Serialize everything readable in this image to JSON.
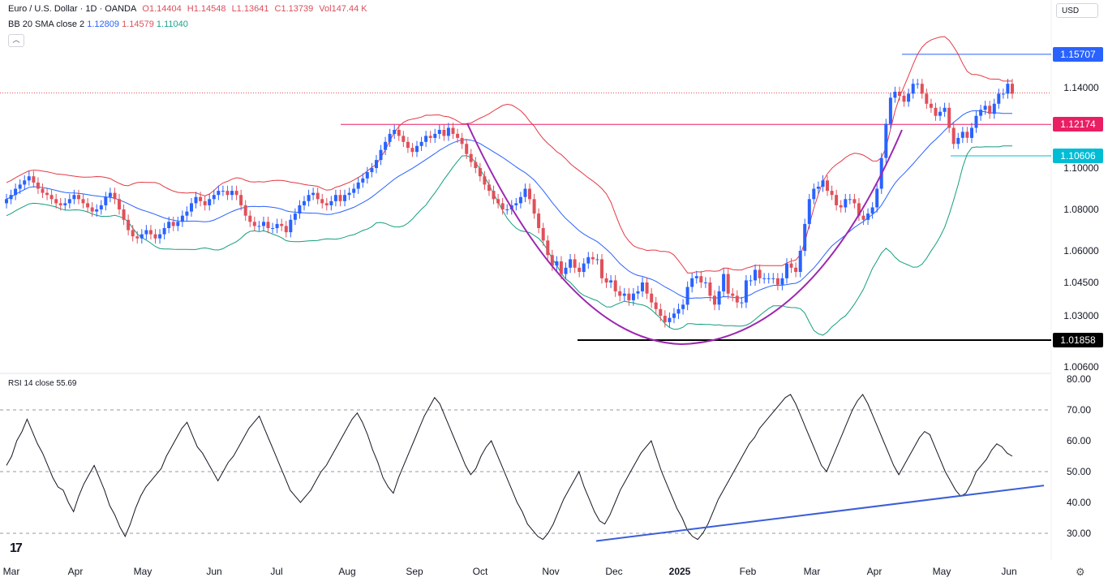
{
  "header": {
    "symbol": "Euro / U.S. Dollar · 1D · OANDA",
    "open": "O1.14404",
    "high": "H1.14548",
    "low": "L1.13641",
    "close": "C1.13739",
    "vol": "Vol147.44 K",
    "indicator": "BB 20 SMA close 2",
    "bb_basis": "1.12809",
    "bb_upper": "1.14579",
    "bb_lower": "1.11040",
    "currency": "USD",
    "collapse_glyph": "︿"
  },
  "rsi_header": "RSI 14 close  55.69",
  "price_labels": {
    "high_line": "1.15707",
    "resistance": "1.12174",
    "support": "1.10606",
    "low_line": "1.01858"
  },
  "logo_text": "17",
  "settings_glyph": "⚙",
  "colors": {
    "up": "#2962ff",
    "down": "#e0505a",
    "bb_upper": "#e53945",
    "bb_basis": "#2962ff",
    "bb_lower": "#149e7d",
    "cup": "#9c27b0",
    "resistance": "#e91e63",
    "support": "#00bcd4",
    "high_line": "#2962ff"
  },
  "chart_data": [
    {
      "type": "candlestick",
      "title": "Euro / U.S. Dollar · 1D · OANDA",
      "y_ticks": [
        "1.14000",
        "1.10000",
        "1.08000",
        "1.06000",
        "1.04500",
        "1.03000",
        "1.00600"
      ],
      "x_ticks": [
        "Mar",
        "Apr",
        "May",
        "Jun",
        "Jul",
        "Aug",
        "Sep",
        "Oct",
        "Nov",
        "Dec",
        "2025",
        "Feb",
        "Mar",
        "Apr",
        "May",
        "Jun"
      ],
      "overlays": [
        "Bollinger Bands (20, 2)"
      ],
      "annotations": [
        {
          "kind": "horizontal",
          "value": 1.15707,
          "label": "1.15707"
        },
        {
          "kind": "horizontal",
          "value": 1.12174,
          "label": "1.12174"
        },
        {
          "kind": "horizontal",
          "value": 1.10606,
          "label": "1.10606"
        },
        {
          "kind": "horizontal",
          "value": 1.01858,
          "label": "1.01858"
        },
        {
          "kind": "cup-curve"
        }
      ],
      "last_close": 1.13739,
      "closes": [
        1.085,
        1.087,
        1.09,
        1.092,
        1.094,
        1.096,
        1.093,
        1.09,
        1.088,
        1.087,
        1.085,
        1.083,
        1.082,
        1.083,
        1.085,
        1.087,
        1.085,
        1.083,
        1.081,
        1.079,
        1.08,
        1.082,
        1.086,
        1.088,
        1.085,
        1.08,
        1.075,
        1.07,
        1.067,
        1.066,
        1.068,
        1.07,
        1.068,
        1.066,
        1.068,
        1.071,
        1.074,
        1.072,
        1.074,
        1.077,
        1.079,
        1.083,
        1.086,
        1.084,
        1.082,
        1.085,
        1.087,
        1.089,
        1.089,
        1.087,
        1.089,
        1.087,
        1.082,
        1.077,
        1.074,
        1.072,
        1.072,
        1.074,
        1.071,
        1.071,
        1.073,
        1.072,
        1.069,
        1.075,
        1.078,
        1.082,
        1.084,
        1.087,
        1.088,
        1.085,
        1.083,
        1.082,
        1.084,
        1.087,
        1.084,
        1.087,
        1.088,
        1.09,
        1.093,
        1.095,
        1.098,
        1.1,
        1.104,
        1.109,
        1.113,
        1.117,
        1.119,
        1.116,
        1.113,
        1.11,
        1.108,
        1.111,
        1.113,
        1.116,
        1.115,
        1.117,
        1.119,
        1.116,
        1.12,
        1.117,
        1.115,
        1.112,
        1.107,
        1.103,
        1.1,
        1.096,
        1.092,
        1.089,
        1.085,
        1.083,
        1.08,
        1.08,
        1.082,
        1.083,
        1.086,
        1.09,
        1.085,
        1.078,
        1.071,
        1.065,
        1.058,
        1.053,
        1.055,
        1.049,
        1.052,
        1.056,
        1.052,
        1.05,
        1.054,
        1.057,
        1.056,
        1.056,
        1.047,
        1.045,
        1.046,
        1.041,
        1.039,
        1.04,
        1.037,
        1.04,
        1.041,
        1.045,
        1.04,
        1.036,
        1.033,
        1.03,
        1.027,
        1.029,
        1.031,
        1.033,
        1.035,
        1.043,
        1.047,
        1.048,
        1.045,
        1.045,
        1.039,
        1.035,
        1.041,
        1.049,
        1.04,
        1.039,
        1.036,
        1.036,
        1.046,
        1.046,
        1.051,
        1.047,
        1.047,
        1.047,
        1.047,
        1.044,
        1.047,
        1.054,
        1.052,
        1.05,
        1.06,
        1.073,
        1.085,
        1.09,
        1.091,
        1.094,
        1.089,
        1.087,
        1.082,
        1.081,
        1.085,
        1.085,
        1.083,
        1.077,
        1.075,
        1.078,
        1.081,
        1.09,
        1.105,
        1.122,
        1.135,
        1.138,
        1.136,
        1.133,
        1.137,
        1.142,
        1.142,
        1.137,
        1.132,
        1.13,
        1.126,
        1.128,
        1.13,
        1.12,
        1.112,
        1.115,
        1.118,
        1.115,
        1.12,
        1.126,
        1.129,
        1.131,
        1.127,
        1.132,
        1.137,
        1.137,
        1.142,
        1.137
      ]
    },
    {
      "type": "line",
      "title": "RSI 14 close",
      "last_value": 55.69,
      "y_ticks": [
        "80.00",
        "70.00",
        "60.00",
        "50.00",
        "40.00",
        "30.00"
      ],
      "reference_lines": [
        70,
        50,
        30
      ],
      "ylim": [
        23,
        82
      ],
      "values": [
        52,
        55,
        60,
        63,
        67,
        63,
        59,
        56,
        52,
        48,
        45,
        44,
        40,
        37,
        42,
        46,
        49,
        52,
        48,
        44,
        39,
        36,
        32,
        29,
        33,
        38,
        42,
        45,
        47,
        49,
        51,
        55,
        58,
        61,
        64,
        66,
        62,
        58,
        56,
        53,
        50,
        47,
        50,
        53,
        55,
        58,
        61,
        64,
        66,
        68,
        64,
        60,
        56,
        52,
        48,
        44,
        42,
        40,
        42,
        44,
        47,
        50,
        52,
        55,
        58,
        61,
        64,
        67,
        69,
        66,
        62,
        57,
        53,
        48,
        45,
        43,
        48,
        52,
        56,
        60,
        64,
        68,
        71,
        74,
        72,
        68,
        64,
        60,
        56,
        52,
        49,
        51,
        55,
        58,
        60,
        56,
        52,
        48,
        44,
        40,
        37,
        33,
        31,
        29,
        28,
        30,
        33,
        37,
        41,
        44,
        47,
        50,
        45,
        41,
        37,
        34,
        33,
        36,
        40,
        44,
        47,
        50,
        53,
        56,
        58,
        60,
        55,
        50,
        46,
        42,
        38,
        35,
        31,
        29,
        28,
        30,
        33,
        37,
        41,
        44,
        47,
        50,
        53,
        56,
        59,
        61,
        64,
        66,
        68,
        70,
        72,
        74,
        75,
        72,
        68,
        64,
        60,
        56,
        52,
        50,
        54,
        58,
        62,
        66,
        70,
        73,
        75,
        72,
        68,
        64,
        60,
        56,
        52,
        49,
        52,
        55,
        58,
        61,
        63,
        62,
        58,
        54,
        50,
        47,
        44,
        42,
        43,
        46,
        50,
        52,
        54,
        57,
        59,
        58,
        56,
        55
      ]
    }
  ]
}
